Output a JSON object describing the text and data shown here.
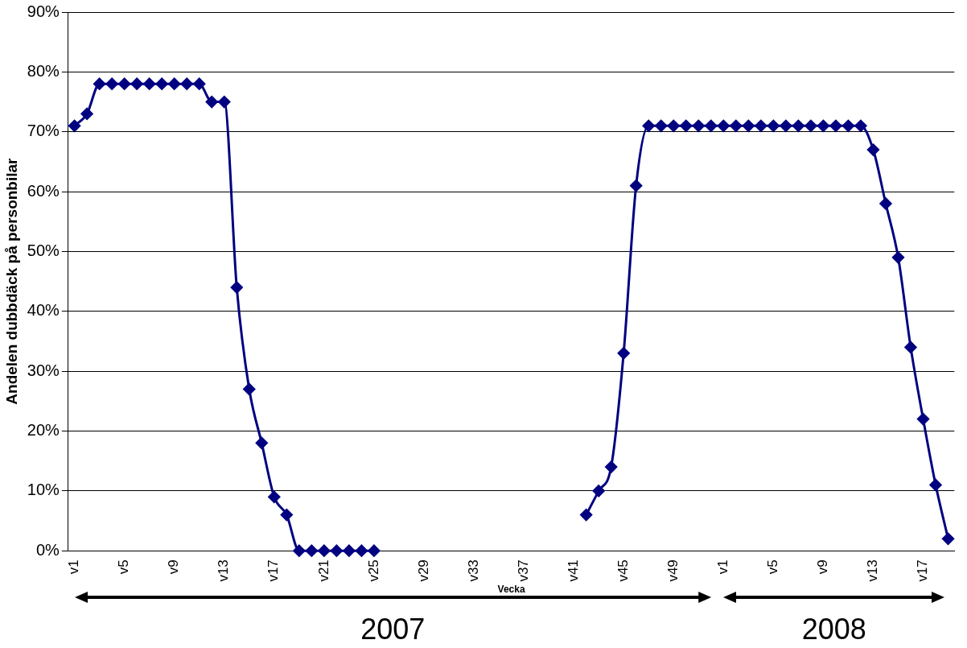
{
  "chart_data": {
    "type": "line",
    "xlabel": "Vecka",
    "ylabel": "Andelen dubbdäck på personbilar",
    "categories": [
      "v1",
      null,
      null,
      null,
      "v5",
      null,
      null,
      null,
      "v9",
      null,
      null,
      null,
      "v13",
      null,
      null,
      null,
      "v17",
      null,
      null,
      null,
      "v21",
      null,
      null,
      null,
      "v25",
      null,
      null,
      null,
      "v29",
      null,
      null,
      null,
      "v33",
      null,
      null,
      null,
      "v37",
      null,
      null,
      null,
      "v41",
      null,
      null,
      null,
      "v45",
      null,
      null,
      null,
      "v49",
      null,
      null,
      null,
      "v1",
      null,
      null,
      null,
      "v5",
      null,
      null,
      null,
      "v9",
      null,
      null,
      null,
      "v13",
      null,
      null,
      null,
      "v17",
      null,
      null
    ],
    "series": [
      {
        "color": "#000080",
        "values": [
          71,
          73,
          78,
          78,
          78,
          78,
          78,
          78,
          78,
          78,
          78,
          75,
          75,
          44,
          27,
          18,
          9,
          6,
          0,
          0,
          0,
          0,
          0,
          0,
          0,
          null,
          null,
          null,
          null,
          null,
          null,
          null,
          null,
          null,
          null,
          null,
          null,
          null,
          null,
          null,
          null,
          6,
          10,
          14,
          33,
          61,
          71,
          71,
          71,
          71,
          71,
          71,
          71,
          71,
          71,
          71,
          71,
          71,
          71,
          71,
          71,
          71,
          71,
          71,
          67,
          58,
          49,
          34,
          22,
          11,
          2
        ]
      }
    ],
    "ylim": [
      0,
      90
    ],
    "yticks": [
      {
        "value": 0,
        "label": "0%"
      },
      {
        "value": 10,
        "label": "10%"
      },
      {
        "value": 20,
        "label": "20%"
      },
      {
        "value": 30,
        "label": "30%"
      },
      {
        "value": 40,
        "label": "40%"
      },
      {
        "value": 50,
        "label": "50%"
      },
      {
        "value": 60,
        "label": "60%"
      },
      {
        "value": 70,
        "label": "70%"
      },
      {
        "value": 80,
        "label": "80%"
      },
      {
        "value": 90,
        "label": "90%"
      }
    ],
    "grid": "y",
    "legend": false,
    "marker": "diamond",
    "line_style": "solid",
    "annotations": [
      "2007",
      "2008"
    ]
  }
}
